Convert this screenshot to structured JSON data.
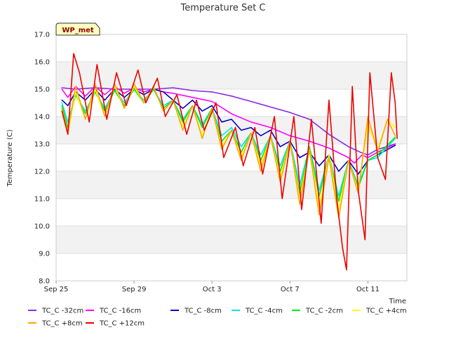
{
  "chart_data": {
    "type": "line",
    "title": "Temperature Set C",
    "xlabel": "Time",
    "ylabel": "Temperature (C)",
    "badge": "WP_met",
    "xlim": [
      0,
      18
    ],
    "ylim": [
      8.0,
      17.0
    ],
    "x_ticks": [
      {
        "x": 0,
        "label": "Sep 25"
      },
      {
        "x": 4,
        "label": "Sep 29"
      },
      {
        "x": 8,
        "label": "Oct 3"
      },
      {
        "x": 12,
        "label": "Oct 7"
      },
      {
        "x": 16,
        "label": "Oct 11"
      }
    ],
    "y_ticks": [
      "8.0",
      "9.0",
      "10.0",
      "11.0",
      "12.0",
      "13.0",
      "14.0",
      "15.0",
      "16.0",
      "17.0"
    ],
    "grid": true,
    "legend_position": "bottom",
    "series": [
      {
        "name": "TC_C -32cm",
        "color": "#8a2be2",
        "points": [
          [
            0.3,
            15.05
          ],
          [
            1,
            15.0
          ],
          [
            2,
            15.05
          ],
          [
            3,
            15.0
          ],
          [
            4,
            15.0
          ],
          [
            5,
            15.0
          ],
          [
            6,
            15.05
          ],
          [
            7,
            14.95
          ],
          [
            8,
            14.9
          ],
          [
            9,
            14.75
          ],
          [
            10,
            14.55
          ],
          [
            11,
            14.35
          ],
          [
            12,
            14.15
          ],
          [
            13,
            13.9
          ],
          [
            14,
            13.35
          ],
          [
            15,
            12.9
          ],
          [
            15.6,
            12.7
          ],
          [
            16,
            12.6
          ],
          [
            16.5,
            12.8
          ],
          [
            17.4,
            13.0
          ]
        ]
      },
      {
        "name": "TC_C -16cm",
        "color": "#ff00ff",
        "points": [
          [
            0.3,
            15.0
          ],
          [
            0.6,
            14.7
          ],
          [
            1,
            15.1
          ],
          [
            1.5,
            14.75
          ],
          [
            2,
            15.1
          ],
          [
            2.5,
            14.8
          ],
          [
            3,
            15.1
          ],
          [
            3.5,
            14.85
          ],
          [
            4,
            15.05
          ],
          [
            4.5,
            14.9
          ],
          [
            5,
            15.0
          ],
          [
            5.5,
            14.9
          ],
          [
            6,
            14.85
          ],
          [
            7,
            14.7
          ],
          [
            8,
            14.55
          ],
          [
            9,
            14.1
          ],
          [
            10,
            13.8
          ],
          [
            11,
            13.6
          ],
          [
            12,
            13.3
          ],
          [
            13,
            13.1
          ],
          [
            14,
            12.85
          ],
          [
            15,
            12.5
          ],
          [
            15.3,
            12.3
          ],
          [
            15.7,
            12.6
          ],
          [
            16,
            12.5
          ],
          [
            16.5,
            12.7
          ],
          [
            17.4,
            13.0
          ]
        ]
      },
      {
        "name": "TC_C -8cm",
        "color": "#0000cd",
        "points": [
          [
            0.3,
            14.6
          ],
          [
            0.6,
            14.4
          ],
          [
            1,
            14.9
          ],
          [
            1.5,
            14.6
          ],
          [
            2,
            15.0
          ],
          [
            2.5,
            14.6
          ],
          [
            3,
            15.0
          ],
          [
            3.5,
            14.7
          ],
          [
            4,
            15.0
          ],
          [
            4.5,
            14.8
          ],
          [
            5,
            15.0
          ],
          [
            5.5,
            14.9
          ],
          [
            6,
            14.6
          ],
          [
            6.5,
            14.3
          ],
          [
            7,
            14.6
          ],
          [
            7.5,
            14.2
          ],
          [
            8,
            14.4
          ],
          [
            8.5,
            13.8
          ],
          [
            9,
            13.9
          ],
          [
            9.5,
            13.5
          ],
          [
            10,
            13.6
          ],
          [
            10.5,
            13.3
          ],
          [
            11,
            13.5
          ],
          [
            11.5,
            12.9
          ],
          [
            12,
            13.1
          ],
          [
            12.5,
            12.5
          ],
          [
            13,
            12.7
          ],
          [
            13.5,
            12.2
          ],
          [
            14,
            12.6
          ],
          [
            14.5,
            12.0
          ],
          [
            15,
            12.4
          ],
          [
            15.5,
            11.9
          ],
          [
            16,
            12.4
          ],
          [
            16.5,
            12.6
          ],
          [
            17.4,
            12.95
          ]
        ]
      },
      {
        "name": "TC_C -4cm",
        "color": "#00e5ee",
        "points": [
          [
            0.3,
            14.5
          ],
          [
            0.6,
            13.8
          ],
          [
            1,
            14.8
          ],
          [
            1.5,
            14.2
          ],
          [
            2,
            14.9
          ],
          [
            2.5,
            14.3
          ],
          [
            3,
            14.95
          ],
          [
            3.5,
            14.5
          ],
          [
            4,
            15.0
          ],
          [
            4.5,
            14.6
          ],
          [
            5,
            15.0
          ],
          [
            5.5,
            14.4
          ],
          [
            6,
            14.6
          ],
          [
            6.5,
            13.9
          ],
          [
            7,
            14.4
          ],
          [
            7.5,
            13.7
          ],
          [
            8,
            14.3
          ],
          [
            8.5,
            13.3
          ],
          [
            9,
            13.6
          ],
          [
            9.5,
            12.9
          ],
          [
            10,
            13.4
          ],
          [
            10.5,
            12.6
          ],
          [
            11,
            13.3
          ],
          [
            11.5,
            12.2
          ],
          [
            12,
            13.1
          ],
          [
            12.5,
            11.5
          ],
          [
            13,
            12.9
          ],
          [
            13.5,
            11.3
          ],
          [
            14,
            12.6
          ],
          [
            14.5,
            11.1
          ],
          [
            15,
            12.4
          ],
          [
            15.5,
            11.5
          ],
          [
            16,
            12.4
          ],
          [
            16.5,
            12.5
          ],
          [
            17.4,
            13.2
          ]
        ]
      },
      {
        "name": "TC_C -2cm",
        "color": "#00ee00",
        "points": [
          [
            0.3,
            14.4
          ],
          [
            0.6,
            13.6
          ],
          [
            1,
            14.8
          ],
          [
            1.5,
            14.1
          ],
          [
            2,
            14.9
          ],
          [
            2.5,
            14.2
          ],
          [
            3,
            14.95
          ],
          [
            3.5,
            14.4
          ],
          [
            4,
            15.0
          ],
          [
            4.5,
            14.5
          ],
          [
            5,
            15.0
          ],
          [
            5.5,
            14.3
          ],
          [
            6,
            14.6
          ],
          [
            6.5,
            13.8
          ],
          [
            7,
            14.4
          ],
          [
            7.5,
            13.6
          ],
          [
            8,
            14.3
          ],
          [
            8.5,
            13.1
          ],
          [
            9,
            13.5
          ],
          [
            9.5,
            12.7
          ],
          [
            10,
            13.4
          ],
          [
            10.5,
            12.4
          ],
          [
            11,
            13.3
          ],
          [
            11.5,
            12.0
          ],
          [
            12,
            13.1
          ],
          [
            12.5,
            11.2
          ],
          [
            13,
            12.9
          ],
          [
            13.5,
            11.1
          ],
          [
            14,
            12.6
          ],
          [
            14.5,
            10.9
          ],
          [
            15,
            12.4
          ],
          [
            15.5,
            11.4
          ],
          [
            16,
            12.4
          ],
          [
            16.5,
            12.6
          ],
          [
            17.4,
            13.25
          ]
        ]
      },
      {
        "name": "TC_C +4cm",
        "color": "#ffff00",
        "points": [
          [
            0.3,
            14.2
          ],
          [
            0.6,
            13.4
          ],
          [
            1,
            14.9
          ],
          [
            1.5,
            13.9
          ],
          [
            2,
            15.0
          ],
          [
            2.5,
            14.0
          ],
          [
            3,
            15.1
          ],
          [
            3.5,
            14.3
          ],
          [
            4,
            15.1
          ],
          [
            4.5,
            14.5
          ],
          [
            5,
            15.1
          ],
          [
            5.5,
            14.2
          ],
          [
            6,
            14.6
          ],
          [
            6.5,
            13.6
          ],
          [
            7,
            14.4
          ],
          [
            7.5,
            13.3
          ],
          [
            8,
            14.3
          ],
          [
            8.5,
            12.9
          ],
          [
            9,
            13.5
          ],
          [
            9.5,
            12.5
          ],
          [
            10,
            13.4
          ],
          [
            10.5,
            12.2
          ],
          [
            11,
            13.3
          ],
          [
            11.5,
            11.8
          ],
          [
            12,
            13.1
          ],
          [
            12.5,
            11.0
          ],
          [
            13,
            12.8
          ],
          [
            13.5,
            10.7
          ],
          [
            14,
            12.6
          ],
          [
            14.5,
            10.6
          ],
          [
            15,
            12.4
          ],
          [
            15.5,
            11.3
          ],
          [
            16,
            13.7
          ],
          [
            16.5,
            12.8
          ],
          [
            17,
            13.9
          ],
          [
            17.4,
            13.6
          ]
        ]
      },
      {
        "name": "TC_C +8cm",
        "color": "#ffa500",
        "points": [
          [
            0.3,
            14.3
          ],
          [
            0.6,
            13.4
          ],
          [
            1,
            15.1
          ],
          [
            1.5,
            13.9
          ],
          [
            2,
            15.2
          ],
          [
            2.5,
            14.0
          ],
          [
            3,
            15.2
          ],
          [
            3.5,
            14.3
          ],
          [
            4,
            15.2
          ],
          [
            4.5,
            14.5
          ],
          [
            5,
            15.1
          ],
          [
            5.5,
            14.2
          ],
          [
            6,
            14.6
          ],
          [
            6.5,
            13.5
          ],
          [
            7,
            14.4
          ],
          [
            7.5,
            13.2
          ],
          [
            8,
            14.3
          ],
          [
            8.5,
            12.8
          ],
          [
            9,
            13.5
          ],
          [
            9.5,
            12.4
          ],
          [
            10,
            13.4
          ],
          [
            10.5,
            12.0
          ],
          [
            11,
            13.3
          ],
          [
            11.5,
            11.6
          ],
          [
            12,
            13.1
          ],
          [
            12.5,
            10.8
          ],
          [
            13,
            12.8
          ],
          [
            13.5,
            10.4
          ],
          [
            14,
            12.5
          ],
          [
            14.5,
            10.3
          ],
          [
            15,
            12.4
          ],
          [
            15.5,
            11.2
          ],
          [
            16,
            14.0
          ],
          [
            16.5,
            12.7
          ],
          [
            17,
            13.9
          ],
          [
            17.4,
            13.3
          ]
        ]
      },
      {
        "name": "TC_C +12cm",
        "color": "#ee0000",
        "points": [
          [
            0.3,
            14.2
          ],
          [
            0.6,
            13.35
          ],
          [
            0.9,
            16.3
          ],
          [
            1.2,
            15.6
          ],
          [
            1.7,
            13.8
          ],
          [
            2.1,
            15.9
          ],
          [
            2.6,
            13.9
          ],
          [
            3.1,
            15.6
          ],
          [
            3.6,
            14.4
          ],
          [
            4.2,
            15.7
          ],
          [
            4.6,
            14.5
          ],
          [
            5.2,
            15.4
          ],
          [
            5.6,
            14.0
          ],
          [
            6.2,
            14.8
          ],
          [
            6.7,
            13.35
          ],
          [
            7.2,
            14.6
          ],
          [
            7.6,
            13.5
          ],
          [
            8.2,
            14.5
          ],
          [
            8.6,
            12.5
          ],
          [
            9.2,
            13.6
          ],
          [
            9.6,
            12.2
          ],
          [
            10.2,
            13.6
          ],
          [
            10.6,
            11.9
          ],
          [
            11.2,
            14.0
          ],
          [
            11.6,
            11.0
          ],
          [
            12.2,
            14.0
          ],
          [
            12.6,
            10.6
          ],
          [
            13.1,
            13.9
          ],
          [
            13.6,
            10.1
          ],
          [
            14.0,
            14.6
          ],
          [
            14.4,
            11.0
          ],
          [
            14.7,
            9.2
          ],
          [
            14.9,
            8.4
          ],
          [
            15.2,
            15.1
          ],
          [
            15.5,
            11.3
          ],
          [
            15.85,
            9.5
          ],
          [
            16.1,
            15.6
          ],
          [
            16.5,
            12.5
          ],
          [
            16.9,
            11.7
          ],
          [
            17.2,
            15.6
          ],
          [
            17.4,
            14.5
          ],
          [
            17.5,
            13.2
          ]
        ]
      }
    ]
  }
}
